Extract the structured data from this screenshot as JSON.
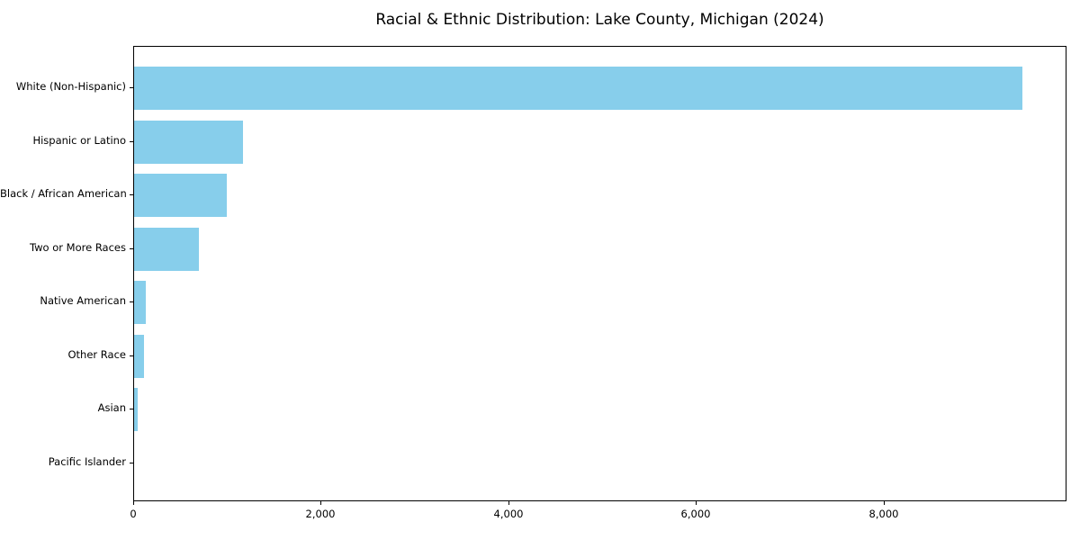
{
  "figure": {
    "background": "#ffffff"
  },
  "chart_data": {
    "type": "bar",
    "orientation": "horizontal",
    "title": "Racial & Ethnic Distribution: Lake County, Michigan (2024)",
    "categories": [
      "White (Non-Hispanic)",
      "Hispanic or Latino",
      "Black / African American",
      "Two or More Races",
      "Native American",
      "Other Race",
      "Asian",
      "Pacific Islander"
    ],
    "values": [
      9475,
      1160,
      985,
      690,
      120,
      110,
      40,
      0
    ],
    "bar_color": "#87CEEB",
    "axis_color": "#000000",
    "text_color": "#000000",
    "xlabel": "",
    "ylabel": "",
    "xlim": [
      0,
      9950
    ],
    "xticks": [
      {
        "value": 0,
        "label": "0"
      },
      {
        "value": 2000,
        "label": "2,000"
      },
      {
        "value": 4000,
        "label": "4,000"
      },
      {
        "value": 6000,
        "label": "6,000"
      },
      {
        "value": 8000,
        "label": "8,000"
      }
    ],
    "grid": false,
    "legend_position": "none"
  }
}
